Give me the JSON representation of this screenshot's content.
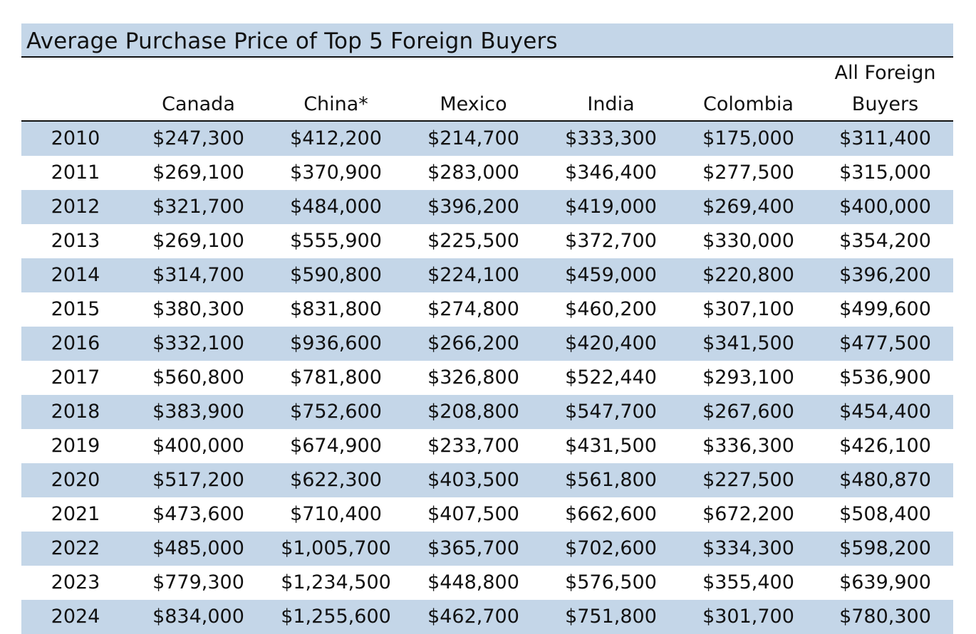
{
  "chart_data": {
    "type": "table",
    "title": "Average Purchase Price of Top 5 Foreign Buyers",
    "columns": [
      {
        "top": "",
        "bottom": ""
      },
      {
        "top": "",
        "bottom": "Canada"
      },
      {
        "top": "",
        "bottom": "China*"
      },
      {
        "top": "",
        "bottom": "Mexico"
      },
      {
        "top": "",
        "bottom": "India"
      },
      {
        "top": "",
        "bottom": "Colombia"
      },
      {
        "top": "All Foreign",
        "bottom": "Buyers"
      }
    ],
    "rows": [
      [
        "2010",
        "$247,300",
        "$412,200",
        "$214,700",
        "$333,300",
        "$175,000",
        "$311,400"
      ],
      [
        "2011",
        "$269,100",
        "$370,900",
        "$283,000",
        "$346,400",
        "$277,500",
        "$315,000"
      ],
      [
        "2012",
        "$321,700",
        "$484,000",
        "$396,200",
        "$419,000",
        "$269,400",
        "$400,000"
      ],
      [
        "2013",
        "$269,100",
        "$555,900",
        "$225,500",
        "$372,700",
        "$330,000",
        "$354,200"
      ],
      [
        "2014",
        "$314,700",
        "$590,800",
        "$224,100",
        "$459,000",
        "$220,800",
        "$396,200"
      ],
      [
        "2015",
        "$380,300",
        "$831,800",
        "$274,800",
        "$460,200",
        "$307,100",
        "$499,600"
      ],
      [
        "2016",
        "$332,100",
        "$936,600",
        "$266,200",
        "$420,400",
        "$341,500",
        "$477,500"
      ],
      [
        "2017",
        "$560,800",
        "$781,800",
        "$326,800",
        "$522,440",
        "$293,100",
        "$536,900"
      ],
      [
        "2018",
        "$383,900",
        "$752,600",
        "$208,800",
        "$547,700",
        "$267,600",
        "$454,400"
      ],
      [
        "2019",
        "$400,000",
        "$674,900",
        "$233,700",
        "$431,500",
        "$336,300",
        "$426,100"
      ],
      [
        "2020",
        "$517,200",
        "$622,300",
        "$403,500",
        "$561,800",
        "$227,500",
        "$480,870"
      ],
      [
        "2021",
        "$473,600",
        "$710,400",
        "$407,500",
        "$662,600",
        "$672,200",
        "$508,400"
      ],
      [
        "2022",
        "$485,000",
        "$1,005,700",
        "$365,700",
        "$702,600",
        "$334,300",
        "$598,200"
      ],
      [
        "2023",
        "$779,300",
        "$1,234,500",
        "$448,800",
        "$576,500",
        "$355,400",
        "$639,900"
      ],
      [
        "2024",
        "$834,000",
        "$1,255,600",
        "$462,700",
        "$751,800",
        "$301,700",
        "$780,300"
      ]
    ],
    "colors": {
      "band": "#c4d6e8",
      "rule": "#111111"
    }
  }
}
